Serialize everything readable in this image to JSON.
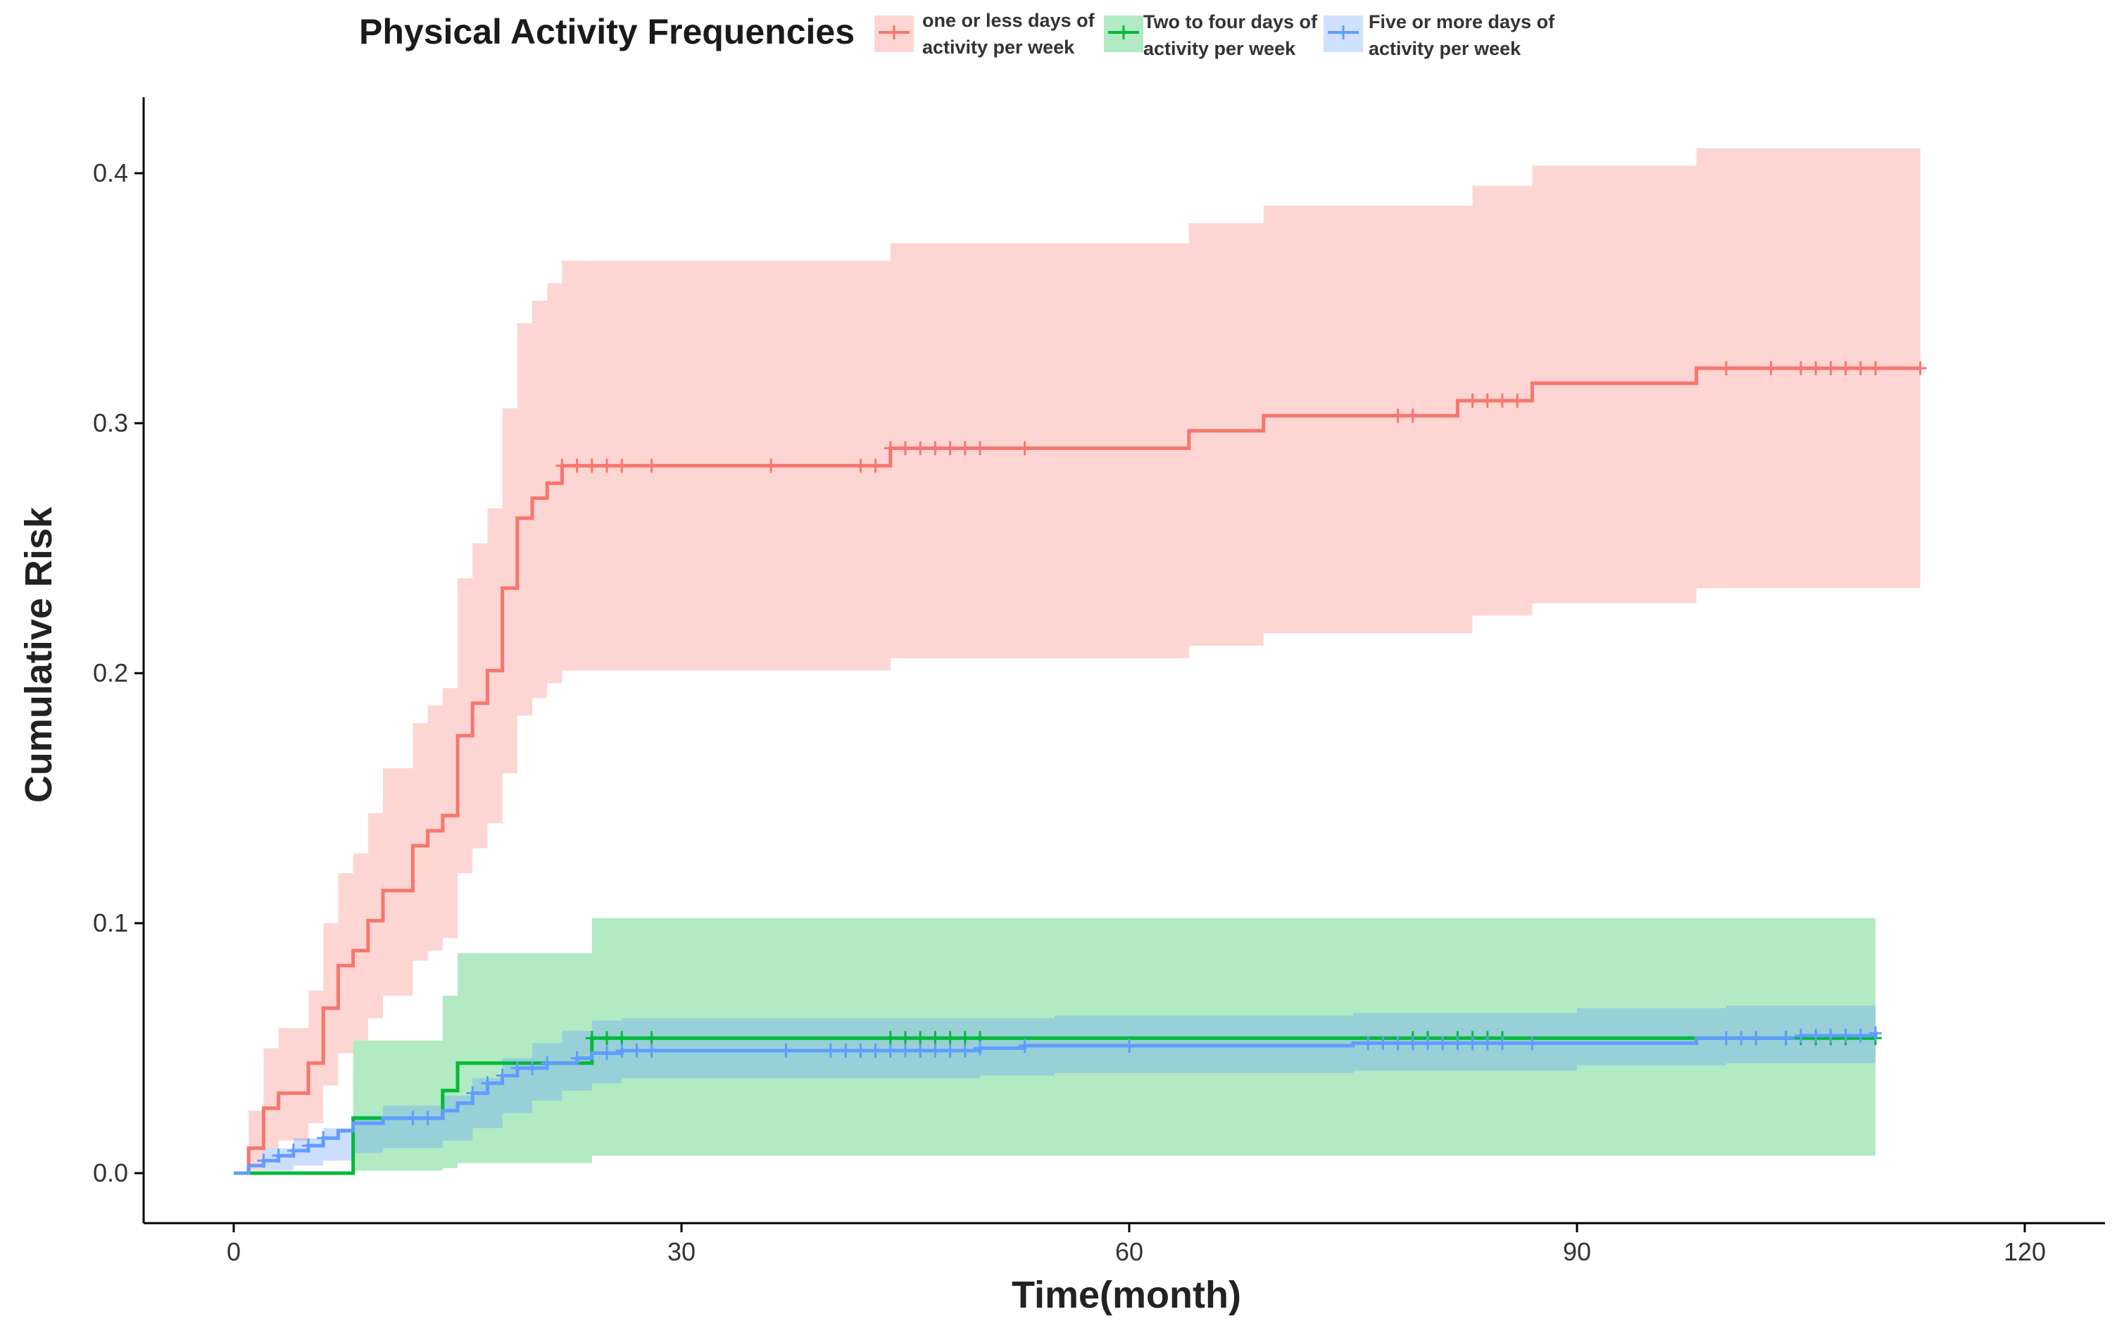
{
  "chart_data": {
    "type": "line",
    "subtype": "step-cumulative-incidence",
    "title": "",
    "xlabel": "Time(month)",
    "ylabel": "Cumulative Risk",
    "xlim": [
      0,
      120
    ],
    "ylim": [
      0,
      0.43
    ],
    "x_ticks": [
      0,
      30,
      60,
      90,
      120
    ],
    "x_tick_labels": [
      "0",
      "30",
      "60",
      "90",
      "120"
    ],
    "y_ticks": [
      0.0,
      0.1,
      0.2,
      0.3,
      0.4
    ],
    "y_tick_labels": [
      "0.0",
      "0.1",
      "0.2",
      "0.3",
      "0.4"
    ],
    "grid": false,
    "legend": {
      "title": "Physical Activity Frequencies",
      "position": "top",
      "entries": [
        {
          "line1": "one or less days of",
          "line2": "activity per week"
        },
        {
          "line1": "Two to four days of",
          "line2": "activity per week"
        },
        {
          "line1": "Five or more days of",
          "line2": "activity  per week"
        }
      ]
    },
    "series": [
      {
        "name": "one or less days of activity per week",
        "color": "#F8766D",
        "band_color": "#F8766D",
        "steps": [
          [
            0,
            0
          ],
          [
            1,
            0.01
          ],
          [
            2,
            0.026
          ],
          [
            3,
            0.032
          ],
          [
            5,
            0.044
          ],
          [
            6,
            0.066
          ],
          [
            7,
            0.083
          ],
          [
            8,
            0.089
          ],
          [
            9,
            0.101
          ],
          [
            10,
            0.113
          ],
          [
            12,
            0.131
          ],
          [
            13,
            0.137
          ],
          [
            14,
            0.143
          ],
          [
            15,
            0.175
          ],
          [
            16,
            0.188
          ],
          [
            17,
            0.201
          ],
          [
            18,
            0.234
          ],
          [
            19,
            0.262
          ],
          [
            20,
            0.27
          ],
          [
            21,
            0.276
          ],
          [
            22,
            0.283
          ],
          [
            44,
            0.29
          ],
          [
            64,
            0.297
          ],
          [
            69,
            0.303
          ],
          [
            82,
            0.309
          ],
          [
            87,
            0.316
          ],
          [
            98,
            0.322
          ],
          [
            113,
            0.322
          ]
        ],
        "lower": [
          [
            0,
            0
          ],
          [
            1,
            0.001
          ],
          [
            2,
            0.01
          ],
          [
            3,
            0.013
          ],
          [
            5,
            0.02
          ],
          [
            6,
            0.035
          ],
          [
            7,
            0.048
          ],
          [
            8,
            0.053
          ],
          [
            9,
            0.062
          ],
          [
            10,
            0.071
          ],
          [
            12,
            0.085
          ],
          [
            13,
            0.089
          ],
          [
            14,
            0.094
          ],
          [
            15,
            0.12
          ],
          [
            16,
            0.13
          ],
          [
            17,
            0.14
          ],
          [
            18,
            0.16
          ],
          [
            19,
            0.183
          ],
          [
            20,
            0.19
          ],
          [
            21,
            0.196
          ],
          [
            22,
            0.201
          ],
          [
            44,
            0.206
          ],
          [
            64,
            0.211
          ],
          [
            69,
            0.216
          ],
          [
            83,
            0.223
          ],
          [
            87,
            0.228
          ],
          [
            98,
            0.234
          ],
          [
            113,
            0.234
          ]
        ],
        "upper": [
          [
            0,
            0
          ],
          [
            1,
            0.025
          ],
          [
            2,
            0.05
          ],
          [
            3,
            0.058
          ],
          [
            5,
            0.073
          ],
          [
            6,
            0.1
          ],
          [
            7,
            0.12
          ],
          [
            8,
            0.128
          ],
          [
            9,
            0.144
          ],
          [
            10,
            0.162
          ],
          [
            12,
            0.18
          ],
          [
            13,
            0.187
          ],
          [
            14,
            0.194
          ],
          [
            15,
            0.238
          ],
          [
            16,
            0.252
          ],
          [
            17,
            0.266
          ],
          [
            18,
            0.306
          ],
          [
            19,
            0.34
          ],
          [
            20,
            0.349
          ],
          [
            21,
            0.356
          ],
          [
            22,
            0.365
          ],
          [
            44,
            0.372
          ],
          [
            64,
            0.38
          ],
          [
            69,
            0.387
          ],
          [
            83,
            0.395
          ],
          [
            87,
            0.403
          ],
          [
            98,
            0.41
          ],
          [
            113,
            0.41
          ]
        ],
        "censor_x": [
          22,
          23,
          24,
          25,
          26,
          28,
          36,
          42,
          43,
          44,
          45,
          46,
          47,
          48,
          49,
          50,
          53,
          78,
          79,
          83,
          84,
          85,
          86,
          100,
          103,
          105,
          106,
          107,
          108,
          109,
          110,
          113
        ]
      },
      {
        "name": "Two to four days of activity per week",
        "color": "#00BA38",
        "band_color": "#00BA38",
        "steps": [
          [
            0,
            0
          ],
          [
            8,
            0.022
          ],
          [
            14,
            0.033
          ],
          [
            15,
            0.044
          ],
          [
            24,
            0.054
          ],
          [
            110,
            0.054
          ]
        ],
        "lower": [
          [
            0,
            0
          ],
          [
            8,
            0.001
          ],
          [
            14,
            0.002
          ],
          [
            15,
            0.004
          ],
          [
            24,
            0.007
          ],
          [
            110,
            0.007
          ]
        ],
        "upper": [
          [
            0,
            0
          ],
          [
            8,
            0.053
          ],
          [
            14,
            0.071
          ],
          [
            15,
            0.088
          ],
          [
            24,
            0.102
          ],
          [
            110,
            0.102
          ]
        ],
        "censor_x": [
          24,
          25,
          26,
          28,
          44,
          45,
          46,
          47,
          48,
          49,
          50,
          79,
          80,
          82,
          83,
          84,
          85,
          102,
          104,
          105,
          106,
          107,
          108,
          110
        ]
      },
      {
        "name": "Five or more days of activity per week",
        "color": "#619CFF",
        "band_color": "#619CFF",
        "steps": [
          [
            0,
            0
          ],
          [
            1,
            0.003
          ],
          [
            2,
            0.005
          ],
          [
            3,
            0.007
          ],
          [
            4,
            0.009
          ],
          [
            5,
            0.011
          ],
          [
            6,
            0.014
          ],
          [
            7,
            0.017
          ],
          [
            8,
            0.02
          ],
          [
            10,
            0.022
          ],
          [
            14,
            0.025
          ],
          [
            15,
            0.028
          ],
          [
            16,
            0.032
          ],
          [
            17,
            0.036
          ],
          [
            18,
            0.039
          ],
          [
            19,
            0.042
          ],
          [
            21,
            0.044
          ],
          [
            23,
            0.046
          ],
          [
            24,
            0.048
          ],
          [
            26,
            0.049
          ],
          [
            50,
            0.05
          ],
          [
            53,
            0.051
          ],
          [
            75,
            0.052
          ],
          [
            98,
            0.054
          ],
          [
            105,
            0.055
          ],
          [
            110,
            0.056
          ]
        ],
        "lower": [
          [
            0,
            0
          ],
          [
            2,
            0.001
          ],
          [
            4,
            0.003
          ],
          [
            6,
            0.005
          ],
          [
            8,
            0.008
          ],
          [
            10,
            0.01
          ],
          [
            14,
            0.013
          ],
          [
            16,
            0.018
          ],
          [
            18,
            0.024
          ],
          [
            20,
            0.029
          ],
          [
            22,
            0.033
          ],
          [
            24,
            0.036
          ],
          [
            26,
            0.038
          ],
          [
            50,
            0.039
          ],
          [
            55,
            0.04
          ],
          [
            75,
            0.041
          ],
          [
            90,
            0.043
          ],
          [
            100,
            0.044
          ],
          [
            110,
            0.045
          ]
        ],
        "upper": [
          [
            0,
            0
          ],
          [
            2,
            0.01
          ],
          [
            4,
            0.014
          ],
          [
            6,
            0.018
          ],
          [
            8,
            0.023
          ],
          [
            10,
            0.027
          ],
          [
            14,
            0.031
          ],
          [
            16,
            0.038
          ],
          [
            18,
            0.046
          ],
          [
            20,
            0.052
          ],
          [
            22,
            0.057
          ],
          [
            24,
            0.061
          ],
          [
            26,
            0.062
          ],
          [
            50,
            0.062
          ],
          [
            55,
            0.063
          ],
          [
            75,
            0.064
          ],
          [
            90,
            0.066
          ],
          [
            100,
            0.067
          ],
          [
            110,
            0.069
          ]
        ],
        "censor_x": [
          2,
          3,
          4,
          5,
          6,
          12,
          13,
          16,
          17,
          18,
          19,
          20,
          21,
          23,
          25,
          26,
          27,
          28,
          37,
          40,
          41,
          42,
          43,
          44,
          45,
          46,
          47,
          48,
          49,
          50,
          53,
          60,
          76,
          77,
          78,
          79,
          80,
          81,
          82,
          83,
          84,
          85,
          87,
          100,
          101,
          102,
          104,
          105,
          106,
          107,
          108,
          109,
          110
        ]
      }
    ]
  }
}
